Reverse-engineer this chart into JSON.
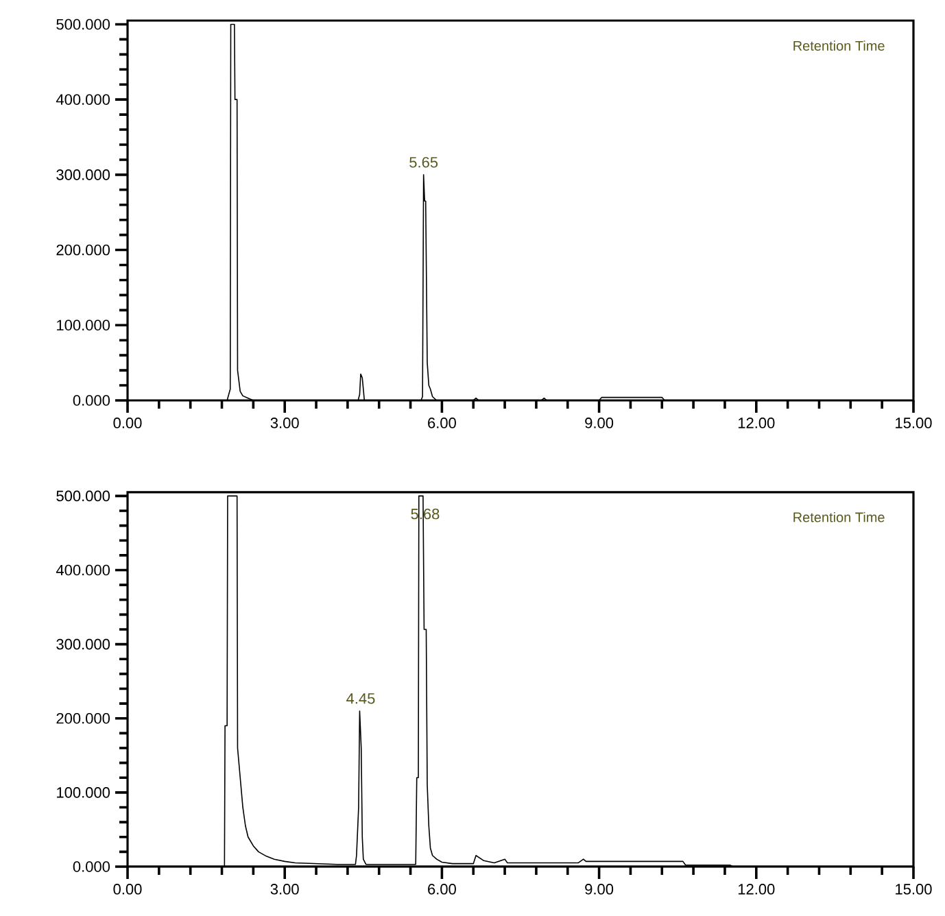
{
  "chart_data": [
    {
      "type": "line",
      "x": [
        0,
        1.9,
        1.96,
        1.97,
        2.04,
        2.05,
        2.09,
        2.1,
        2.15,
        2.2,
        2.3,
        2.4,
        4.4,
        4.43,
        4.45,
        4.48,
        4.52,
        5.6,
        5.63,
        5.64,
        5.65,
        5.67,
        5.69,
        5.72,
        5.75,
        5.78,
        5.82,
        5.9,
        6.6,
        6.65,
        6.7,
        7.9,
        7.95,
        8.0,
        9.0,
        9.05,
        10.2,
        10.25,
        15
      ],
      "series": [
        {
          "color": "#000000",
          "values": [
            0,
            0,
            15,
            500,
            500,
            400,
            400,
            40,
            12,
            6,
            3,
            0,
            0,
            8,
            35,
            30,
            0,
            0,
            5,
            150,
            300,
            265,
            265,
            50,
            20,
            15,
            5,
            0,
            0,
            3,
            0,
            0,
            3,
            0,
            0,
            4,
            4,
            0,
            0
          ]
        }
      ],
      "xlim": [
        0,
        15
      ],
      "ylim": [
        0,
        505
      ],
      "xticks": [
        {
          "value": 0,
          "label": "0.00"
        },
        {
          "value": 3,
          "label": "3.00"
        },
        {
          "value": 6,
          "label": "6.00"
        },
        {
          "value": 9,
          "label": "9.00"
        },
        {
          "value": 12,
          "label": "12.00"
        },
        {
          "value": 15,
          "label": "15.00"
        }
      ],
      "yticks": [
        {
          "value": 0,
          "label": "0.000"
        },
        {
          "value": 100,
          "label": "100.000"
        },
        {
          "value": 200,
          "label": "200.000"
        },
        {
          "value": 300,
          "label": "300.000"
        },
        {
          "value": 400,
          "label": "400.000"
        },
        {
          "value": 500,
          "label": "500.000"
        }
      ],
      "annotations": [
        "Retention Time",
        {
          "text": "5.65",
          "x": 5.65,
          "y": 300
        }
      ],
      "grid": false,
      "marker": "none",
      "line_style": "solid"
    },
    {
      "type": "line",
      "x": [
        0,
        1.85,
        1.86,
        1.9,
        1.91,
        2.09,
        2.1,
        2.2,
        2.25,
        2.3,
        2.4,
        2.5,
        2.65,
        2.8,
        3.0,
        3.2,
        3.6,
        4.0,
        4.35,
        4.37,
        4.41,
        4.43,
        4.46,
        4.48,
        4.5,
        4.55,
        4.7,
        5.5,
        5.52,
        5.55,
        5.56,
        5.64,
        5.66,
        5.7,
        5.72,
        5.75,
        5.78,
        5.82,
        5.9,
        6.0,
        6.2,
        6.6,
        6.65,
        6.8,
        7.0,
        7.2,
        7.25,
        7.6,
        8.0,
        8.6,
        8.7,
        8.75,
        10.6,
        10.65,
        11.5,
        11.55,
        15
      ],
      "series": [
        {
          "color": "#000000",
          "values": [
            0,
            0,
            190,
            190,
            500,
            500,
            160,
            80,
            55,
            40,
            28,
            20,
            14,
            10,
            7,
            5,
            4,
            3,
            3,
            15,
            80,
            210,
            160,
            40,
            10,
            3,
            3,
            3,
            120,
            120,
            500,
            500,
            320,
            320,
            110,
            55,
            25,
            15,
            10,
            6,
            4,
            4,
            15,
            8,
            5,
            10,
            5,
            5,
            5,
            5,
            10,
            7,
            7,
            2,
            2,
            0,
            0
          ]
        }
      ],
      "xlim": [
        0,
        15
      ],
      "ylim": [
        0,
        505
      ],
      "xticks": [
        {
          "value": 0,
          "label": "0.00"
        },
        {
          "value": 3,
          "label": "3.00"
        },
        {
          "value": 6,
          "label": "6.00"
        },
        {
          "value": 9,
          "label": "9.00"
        },
        {
          "value": 12,
          "label": "12.00"
        },
        {
          "value": 15,
          "label": "15.00"
        }
      ],
      "yticks": [
        {
          "value": 0,
          "label": "0.000"
        },
        {
          "value": 100,
          "label": "100.000"
        },
        {
          "value": 200,
          "label": "200.000"
        },
        {
          "value": 300,
          "label": "300.000"
        },
        {
          "value": 400,
          "label": "400.000"
        },
        {
          "value": 500,
          "label": "500.000"
        }
      ],
      "annotations": [
        "Retention Time",
        {
          "text": "4.45",
          "x": 4.45,
          "y": 210
        },
        {
          "text": "5.68",
          "x": 5.68,
          "y": 500
        }
      ],
      "grid": false,
      "marker": "none",
      "line_style": "solid"
    }
  ]
}
